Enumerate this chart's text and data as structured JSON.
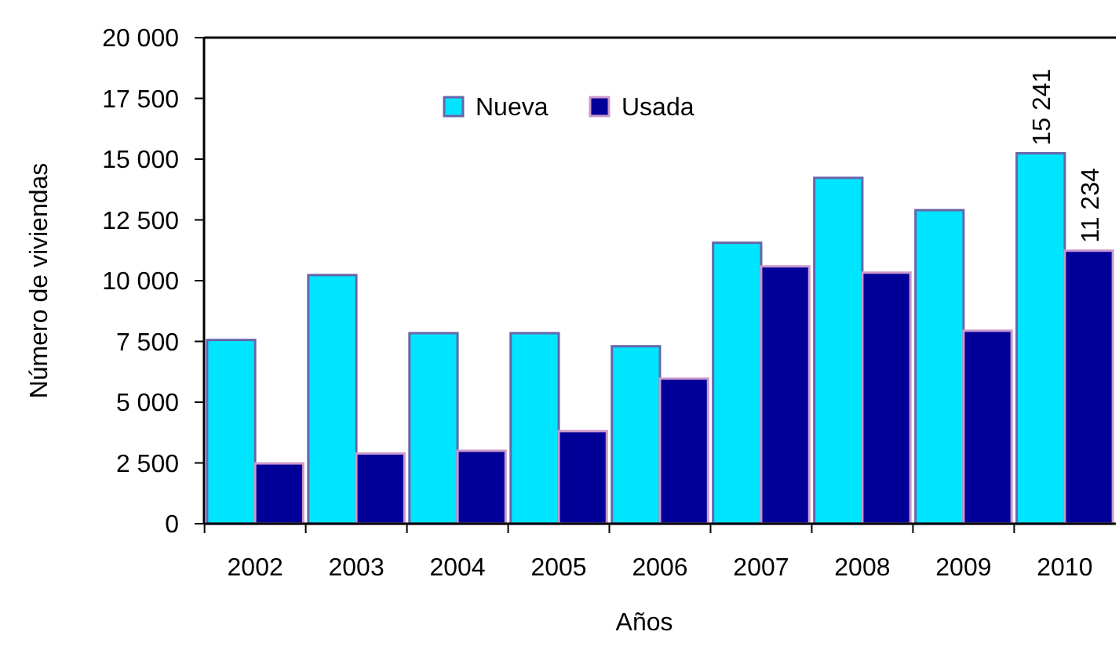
{
  "chart_data": {
    "type": "bar",
    "xlabel": "Años",
    "ylabel": "Número de viviendas",
    "categories": [
      "2002",
      "2003",
      "2004",
      "2005",
      "2006",
      "2007",
      "2008",
      "2009",
      "2010"
    ],
    "series": [
      {
        "name": "Nueva",
        "color": "#00e5ff",
        "values": [
          7560,
          10230,
          7840,
          7840,
          7300,
          11560,
          14230,
          12900,
          15241
        ],
        "value_labels": [
          null,
          null,
          null,
          null,
          null,
          null,
          null,
          null,
          "15 241"
        ]
      },
      {
        "name": "Usada",
        "color": "#000099",
        "values": [
          2480,
          2890,
          3000,
          3810,
          5970,
          10590,
          10330,
          7940,
          11234
        ],
        "value_labels": [
          null,
          null,
          null,
          null,
          null,
          null,
          null,
          null,
          "11 234"
        ]
      }
    ],
    "ylim": [
      0,
      20000
    ],
    "yticks": [
      {
        "value": 0,
        "label": "0"
      },
      {
        "value": 2500,
        "label": "2 500"
      },
      {
        "value": 5000,
        "label": "5 000"
      },
      {
        "value": 7500,
        "label": "7 500"
      },
      {
        "value": 10000,
        "label": "10 000"
      },
      {
        "value": 12500,
        "label": "12 500"
      },
      {
        "value": 15000,
        "label": "15 000"
      },
      {
        "value": 17500,
        "label": "17 500"
      },
      {
        "value": 20000,
        "label": "20 000"
      }
    ],
    "grid": false,
    "legend": "top"
  }
}
